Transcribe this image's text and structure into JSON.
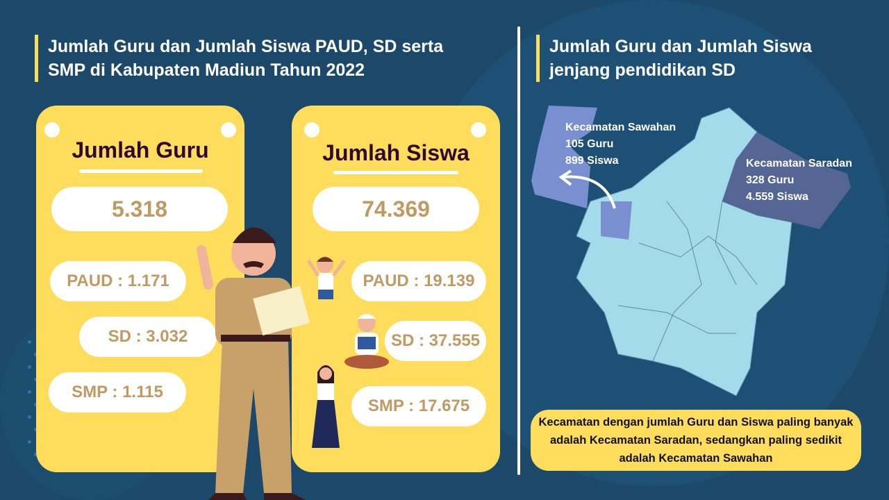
{
  "left": {
    "title_line1": "Jumlah Guru dan Jumlah Siswa PAUD, SD serta",
    "title_line2": "SMP di Kabupaten Madiun Tahun 2022",
    "guru": {
      "heading": "Jumlah Guru",
      "total": "5.318",
      "paud": "PAUD : 1.171",
      "sd": "SD : 3.032",
      "smp": "SMP : 1.115"
    },
    "siswa": {
      "heading": "Jumlah Siswa",
      "total": "74.369",
      "paud": "PAUD : 19.139",
      "sd": "SD : 37.555",
      "smp": "SMP : 17.675"
    }
  },
  "right": {
    "title_line1": "Jumlah Guru dan Jumlah Siswa",
    "title_line2": "jenjang pendidikan SD",
    "sawahan": {
      "name": "Kecamatan Sawahan",
      "guru": "105 Guru",
      "siswa": "899 Siswa"
    },
    "saradan": {
      "name": "Kecamatan Saradan",
      "guru": "328 Guru",
      "siswa": "4.559 Siswa"
    },
    "note": "Kecamatan dengan jumlah Guru dan Siswa paling banyak adalah Kecamatan Saradan, sedangkan paling sedikit adalah Kecamatan Sawahan"
  },
  "colors": {
    "background": "#1c4869",
    "card": "#fedd5c",
    "number_text": "#c09a62",
    "map_base": "#a4dbea",
    "map_sawahan": "#7a8fd0",
    "map_saradan": "#566694"
  }
}
